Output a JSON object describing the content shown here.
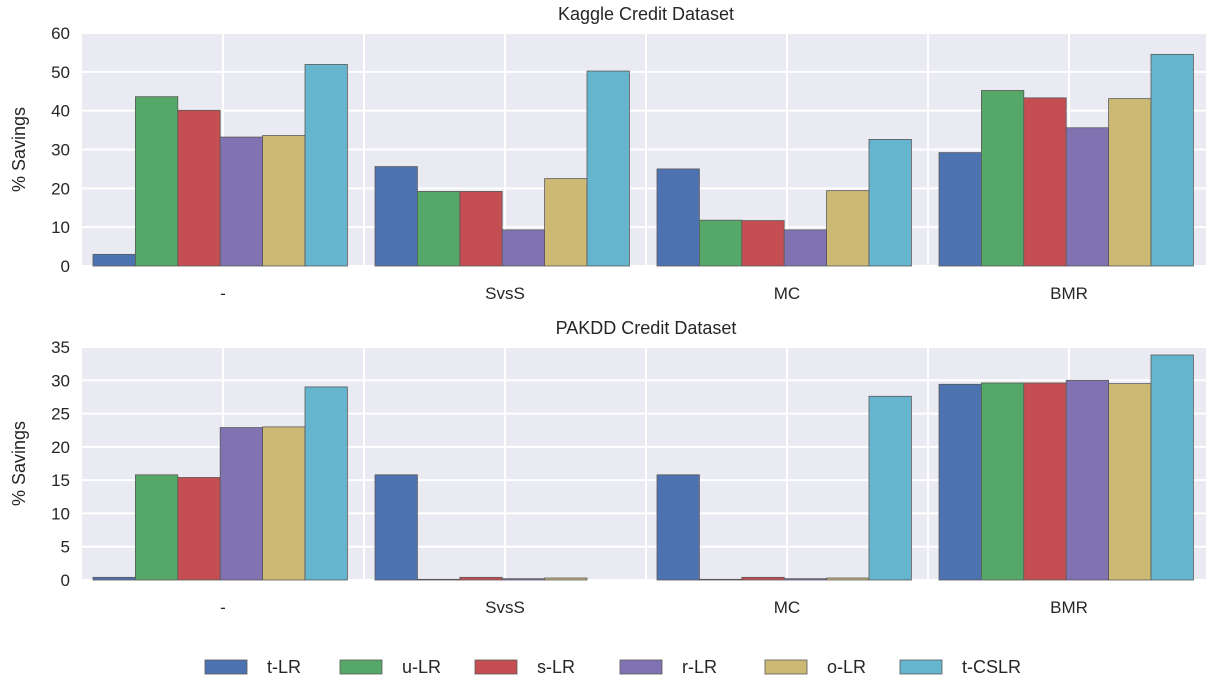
{
  "chart_data": [
    {
      "type": "bar",
      "title": "Kaggle Credit Dataset",
      "xlabel": "",
      "ylabel": "% Savings",
      "ylim": [
        0,
        60
      ],
      "yticks": [
        0,
        10,
        20,
        30,
        40,
        50,
        60
      ],
      "grid": true,
      "legend": "bottom",
      "categories": [
        "-",
        "SvsS",
        "MC",
        "BMR"
      ],
      "series": [
        {
          "name": "t-LR",
          "color": "#4c72b0",
          "values": [
            3.0,
            25.6,
            25.0,
            29.2
          ]
        },
        {
          "name": "u-LR",
          "color": "#55a868",
          "values": [
            43.6,
            19.2,
            11.8,
            45.2
          ]
        },
        {
          "name": "s-LR",
          "color": "#c44e52",
          "values": [
            40.1,
            19.2,
            11.7,
            43.3
          ]
        },
        {
          "name": "r-LR",
          "color": "#8172b2",
          "values": [
            33.2,
            9.3,
            9.3,
            35.6
          ]
        },
        {
          "name": "o-LR",
          "color": "#ccb974",
          "values": [
            33.6,
            22.5,
            19.4,
            43.1
          ]
        },
        {
          "name": "t-CSLR",
          "color": "#64b5cd",
          "values": [
            51.9,
            50.2,
            32.6,
            54.5
          ]
        }
      ]
    },
    {
      "type": "bar",
      "title": "PAKDD Credit Dataset",
      "xlabel": "",
      "ylabel": "% Savings",
      "ylim": [
        0,
        35
      ],
      "yticks": [
        0,
        5,
        10,
        15,
        20,
        25,
        30,
        35
      ],
      "grid": true,
      "legend": "bottom",
      "categories": [
        "-",
        "SvsS",
        "MC",
        "BMR"
      ],
      "series": [
        {
          "name": "t-LR",
          "color": "#4c72b0",
          "values": [
            0.4,
            15.8,
            15.8,
            29.4
          ]
        },
        {
          "name": "u-LR",
          "color": "#55a868",
          "values": [
            15.8,
            0.1,
            0.1,
            29.6
          ]
        },
        {
          "name": "s-LR",
          "color": "#c44e52",
          "values": [
            15.4,
            0.4,
            0.4,
            29.6
          ]
        },
        {
          "name": "r-LR",
          "color": "#8172b2",
          "values": [
            22.9,
            0.2,
            0.2,
            30.0
          ]
        },
        {
          "name": "o-LR",
          "color": "#ccb974",
          "values": [
            23.0,
            0.3,
            0.3,
            29.5
          ]
        },
        {
          "name": "t-CSLR",
          "color": "#64b5cd",
          "values": [
            29.0,
            0.0,
            27.6,
            33.8
          ]
        }
      ]
    }
  ]
}
